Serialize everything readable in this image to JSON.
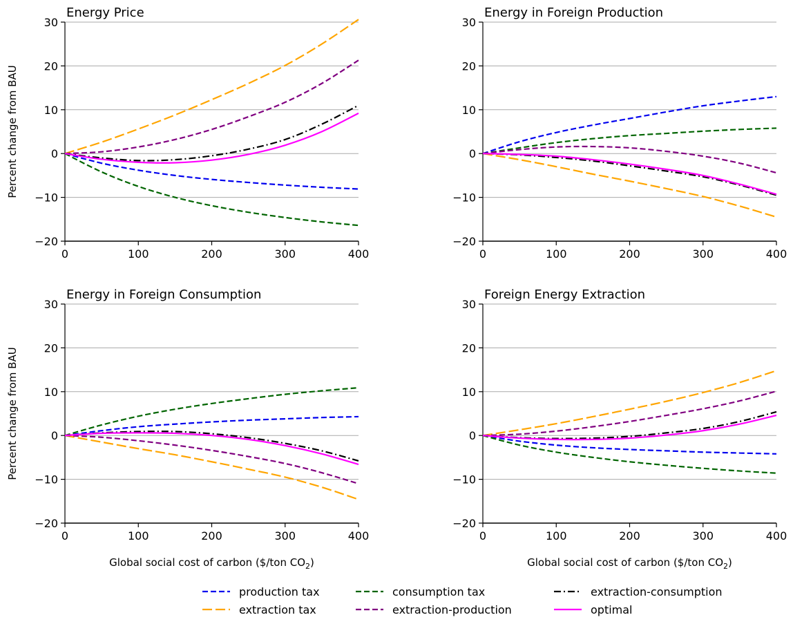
{
  "chart_data": [
    {
      "type": "line",
      "title": "Energy Price",
      "xlabel": "",
      "ylabel": "Percent change from BAU",
      "xlim": [
        0,
        400
      ],
      "ylim": [
        -20,
        30
      ],
      "xticks": [
        0,
        100,
        200,
        300,
        400
      ],
      "yticks": [
        -20,
        -10,
        0,
        10,
        20,
        30
      ],
      "grid": "horizontal",
      "x": [
        0,
        50,
        100,
        150,
        200,
        250,
        300,
        350,
        400
      ],
      "series": [
        {
          "name": "production tax",
          "values": [
            0,
            -2.2,
            -3.8,
            -5.0,
            -5.9,
            -6.6,
            -7.2,
            -7.7,
            -8.1
          ]
        },
        {
          "name": "consumption tax",
          "values": [
            0,
            -4.2,
            -7.5,
            -10.0,
            -11.9,
            -13.4,
            -14.6,
            -15.6,
            -16.4
          ]
        },
        {
          "name": "extraction tax",
          "values": [
            0,
            2.6,
            5.6,
            8.8,
            12.3,
            16.0,
            20.1,
            25.0,
            30.6
          ]
        },
        {
          "name": "extraction-production",
          "values": [
            0,
            0.4,
            1.5,
            3.2,
            5.5,
            8.4,
            11.7,
            16.0,
            21.3
          ]
        },
        {
          "name": "extraction-consumption",
          "values": [
            0,
            -1.0,
            -1.6,
            -1.4,
            -0.5,
            1.0,
            3.2,
            6.7,
            11.0
          ]
        },
        {
          "name": "optimal",
          "values": [
            0,
            -1.3,
            -2.0,
            -2.1,
            -1.5,
            -0.2,
            1.9,
            5.0,
            9.2
          ]
        }
      ]
    },
    {
      "type": "line",
      "title": "Energy in Foreign Production",
      "xlabel": "",
      "ylabel": "",
      "xlim": [
        0,
        400
      ],
      "ylim": [
        -20,
        30
      ],
      "xticks": [
        0,
        100,
        200,
        300,
        400
      ],
      "yticks": [
        -20,
        -10,
        0,
        10,
        20,
        30
      ],
      "grid": "horizontal",
      "x": [
        0,
        50,
        100,
        150,
        200,
        250,
        300,
        350,
        400
      ],
      "series": [
        {
          "name": "production tax",
          "values": [
            0,
            2.7,
            4.8,
            6.5,
            8.0,
            9.5,
            10.9,
            12.0,
            13.0
          ]
        },
        {
          "name": "consumption tax",
          "values": [
            0,
            1.3,
            2.5,
            3.4,
            4.1,
            4.6,
            5.1,
            5.5,
            5.8
          ]
        },
        {
          "name": "extraction tax",
          "values": [
            0,
            -1.4,
            -3.0,
            -4.7,
            -6.3,
            -8.0,
            -9.8,
            -12.0,
            -14.5
          ]
        },
        {
          "name": "extraction-production",
          "values": [
            0,
            0.9,
            1.5,
            1.6,
            1.3,
            0.5,
            -0.6,
            -2.2,
            -4.4
          ]
        },
        {
          "name": "extraction-consumption",
          "values": [
            0,
            -0.3,
            -0.9,
            -1.7,
            -2.8,
            -4.0,
            -5.3,
            -7.2,
            -9.5
          ]
        },
        {
          "name": "optimal",
          "values": [
            0,
            -0.2,
            -0.6,
            -1.4,
            -2.4,
            -3.6,
            -5.0,
            -7.0,
            -9.3
          ]
        }
      ]
    },
    {
      "type": "line",
      "title": "Energy in Foreign Consumption",
      "xlabel": "Global social cost of carbon ($/ton CO₂)",
      "ylabel": "Percent change from BAU",
      "xlim": [
        0,
        400
      ],
      "ylim": [
        -20,
        30
      ],
      "xticks": [
        0,
        100,
        200,
        300,
        400
      ],
      "yticks": [
        -20,
        -10,
        0,
        10,
        20,
        30
      ],
      "grid": "horizontal",
      "x": [
        0,
        50,
        100,
        150,
        200,
        250,
        300,
        350,
        400
      ],
      "series": [
        {
          "name": "production tax",
          "values": [
            0,
            1.1,
            2.0,
            2.6,
            3.1,
            3.5,
            3.8,
            4.1,
            4.3
          ]
        },
        {
          "name": "consumption tax",
          "values": [
            0,
            2.4,
            4.4,
            6.0,
            7.3,
            8.4,
            9.4,
            10.2,
            10.9
          ]
        },
        {
          "name": "extraction tax",
          "values": [
            0,
            -1.5,
            -3.0,
            -4.4,
            -6.0,
            -7.7,
            -9.5,
            -11.8,
            -14.6
          ]
        },
        {
          "name": "extraction-production",
          "values": [
            0,
            -0.4,
            -1.2,
            -2.2,
            -3.4,
            -4.8,
            -6.4,
            -8.5,
            -11.0
          ]
        },
        {
          "name": "extraction-consumption",
          "values": [
            0,
            0.6,
            0.9,
            0.9,
            0.4,
            -0.5,
            -1.8,
            -3.5,
            -5.8
          ]
        },
        {
          "name": "optimal",
          "values": [
            0,
            0.5,
            0.6,
            0.5,
            0.0,
            -0.9,
            -2.3,
            -4.2,
            -6.6
          ]
        }
      ]
    },
    {
      "type": "line",
      "title": "Foreign Energy Extraction",
      "xlabel": "Global social cost of carbon ($/ton CO₂)",
      "ylabel": "",
      "xlim": [
        0,
        400
      ],
      "ylim": [
        -20,
        30
      ],
      "xticks": [
        0,
        100,
        200,
        300,
        400
      ],
      "yticks": [
        -20,
        -10,
        0,
        10,
        20,
        30
      ],
      "grid": "horizontal",
      "x": [
        0,
        50,
        100,
        150,
        200,
        250,
        300,
        350,
        400
      ],
      "series": [
        {
          "name": "production tax",
          "values": [
            0,
            -1.3,
            -2.2,
            -2.8,
            -3.2,
            -3.5,
            -3.8,
            -4.0,
            -4.2
          ]
        },
        {
          "name": "consumption tax",
          "values": [
            0,
            -2.2,
            -3.8,
            -5.0,
            -6.0,
            -6.8,
            -7.5,
            -8.1,
            -8.6
          ]
        },
        {
          "name": "extraction tax",
          "values": [
            0,
            1.3,
            2.7,
            4.3,
            6.0,
            7.8,
            9.8,
            12.1,
            14.8
          ]
        },
        {
          "name": "extraction-production",
          "values": [
            0,
            0.3,
            1.0,
            2.0,
            3.2,
            4.6,
            6.1,
            7.9,
            10.1
          ]
        },
        {
          "name": "extraction-consumption",
          "values": [
            0,
            -0.5,
            -0.7,
            -0.6,
            -0.2,
            0.6,
            1.6,
            3.2,
            5.4
          ]
        },
        {
          "name": "optimal",
          "values": [
            0,
            -0.6,
            -0.9,
            -0.9,
            -0.6,
            0.1,
            1.1,
            2.6,
            4.6
          ]
        }
      ]
    }
  ],
  "legend": {
    "placement": "bottom",
    "entries": [
      {
        "name": "production tax",
        "color": "#0000ee",
        "style": "dashed"
      },
      {
        "name": "consumption tax",
        "color": "#006400",
        "style": "dashed"
      },
      {
        "name": "extraction-consumption",
        "color": "#000000",
        "style": "dash-dot"
      },
      {
        "name": "extraction tax",
        "color": "#ffa500",
        "style": "long-dashed"
      },
      {
        "name": "extraction-production",
        "color": "#800080",
        "style": "dashed"
      },
      {
        "name": "optimal",
        "color": "#ff00ff",
        "style": "solid"
      }
    ]
  },
  "series_styles": {
    "production tax": {
      "color": "#0000ee",
      "dash": "dashed"
    },
    "consumption tax": {
      "color": "#006400",
      "dash": "dashed"
    },
    "extraction tax": {
      "color": "#ffa500",
      "dash": "long-dashed"
    },
    "extraction-production": {
      "color": "#800080",
      "dash": "dashed"
    },
    "extraction-consumption": {
      "color": "#000000",
      "dash": "dash-dot"
    },
    "optimal": {
      "color": "#ff00ff",
      "dash": "solid"
    }
  }
}
